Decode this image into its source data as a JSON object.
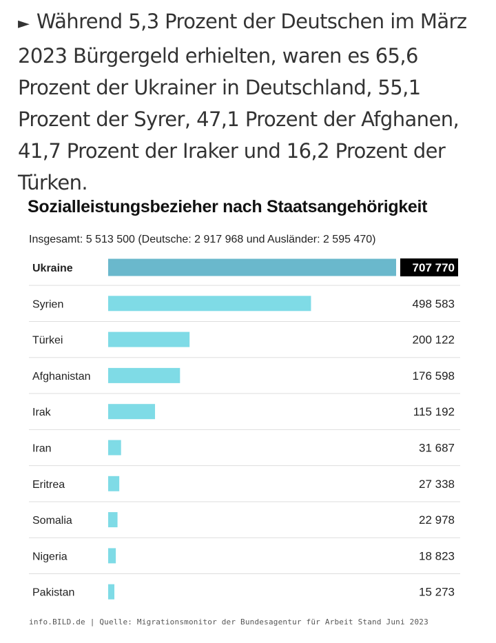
{
  "intro": {
    "arrow": "►",
    "text": "Während 5,3 Prozent der Deutschen im März 2023 Bürgergeld erhielten, waren es 65,6 Prozent der Ukrainer in Deutschland, 55,1 Prozent der Syrer, 47,1 Prozent der Afghanen, 41,7 Prozent der Iraker und 16,2 Prozent der Türken."
  },
  "source": "info.BILD.de | Quelle: Migrationsmonitor der Bundesagentur für Arbeit Stand Juni 2023",
  "colors": {
    "highlight_bar": "#6ab8cc",
    "bar": "#7fdbe6",
    "highlight_label_bg": "#000000",
    "highlight_label_text": "#ffffff",
    "divider": "#dddddd"
  },
  "chart_data": {
    "type": "bar",
    "orientation": "horizontal",
    "title": "Sozialleistungsbezieher nach Staatsangehörigkeit",
    "subtitle": "Insgesamt: 5 513 500 (Deutsche: 2 917 968 und Ausländer: 2 595 470)",
    "categories": [
      "Ukraine",
      "Syrien",
      "Türkei",
      "Afghanistan",
      "Irak",
      "Iran",
      "Eritrea",
      "Somalia",
      "Nigeria",
      "Pakistan"
    ],
    "values": [
      707770,
      498583,
      200122,
      176598,
      115192,
      31687,
      27338,
      22978,
      18823,
      15273
    ],
    "value_labels": [
      "707 770",
      "498 583",
      "200 122",
      "176 598",
      "115 192",
      "31 687",
      "27 338",
      "22 978",
      "18 823",
      "15 273"
    ],
    "highlighted": "Ukraine",
    "xlim": [
      0,
      707770
    ],
    "grid": false
  }
}
